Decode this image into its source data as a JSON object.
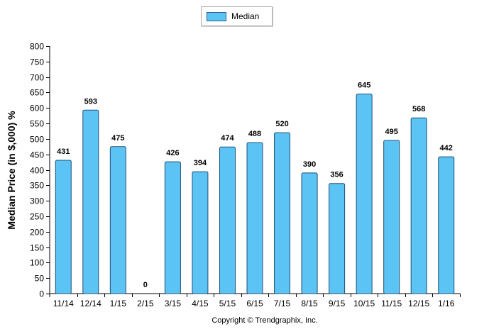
{
  "legend": {
    "label": "Median",
    "color": "#5bc4f5"
  },
  "copyright": "Copyright © Trendgraphix, Inc.",
  "chart_data": {
    "type": "bar",
    "title": "",
    "xlabel": "",
    "ylabel": "Median Price (in $,000) %",
    "ylim": [
      0,
      800
    ],
    "ytick_step": 50,
    "grid": false,
    "legend_position": "top-center",
    "categories": [
      "11/14",
      "12/14",
      "1/15",
      "2/15",
      "3/15",
      "4/15",
      "5/15",
      "6/15",
      "7/15",
      "8/15",
      "9/15",
      "10/15",
      "11/15",
      "12/15",
      "1/16"
    ],
    "series": [
      {
        "name": "Median",
        "values": [
          431,
          593,
          475,
          0,
          426,
          394,
          474,
          488,
          520,
          390,
          356,
          645,
          495,
          568,
          442
        ]
      }
    ],
    "bar_fill": "#5bc4f5",
    "bar_stroke": "#1f4f78"
  }
}
